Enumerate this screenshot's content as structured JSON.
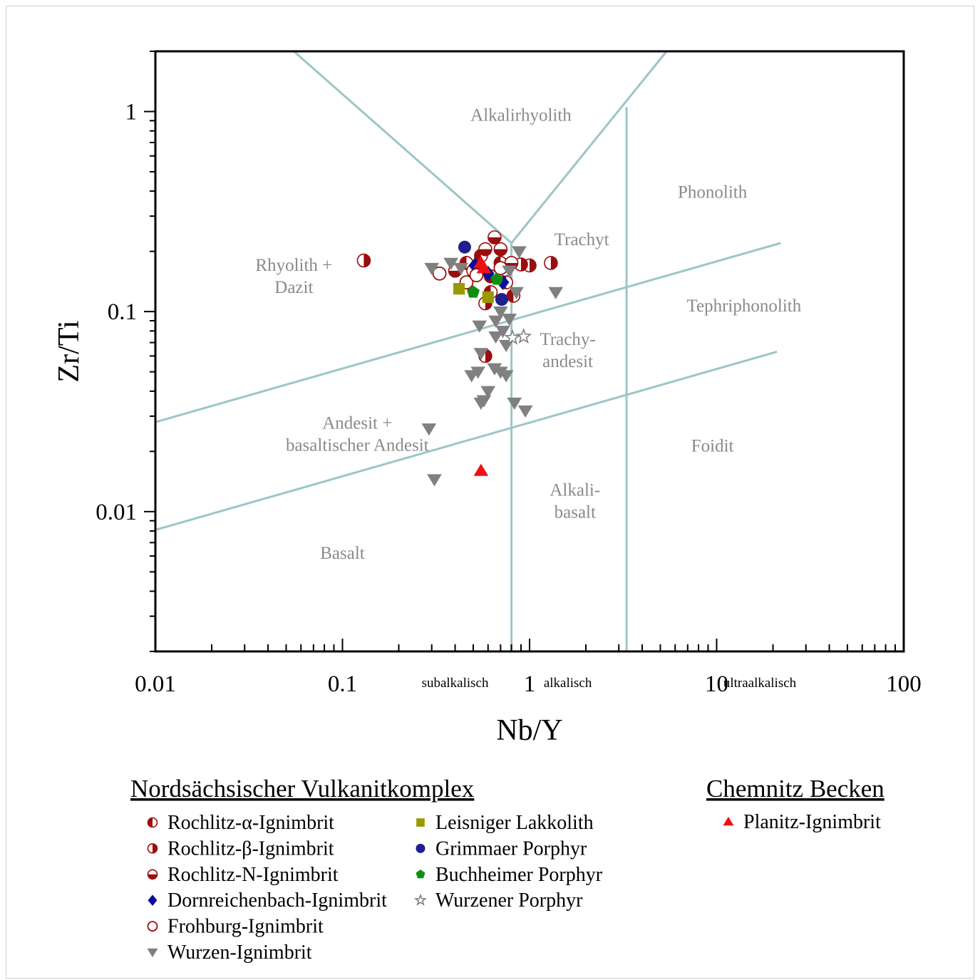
{
  "chart_data": {
    "type": "scatter",
    "xlabel": "Nb/Y",
    "ylabel": "Zr/Ti",
    "x_scale": "log",
    "y_scale": "log",
    "xlim": [
      0.01,
      100
    ],
    "ylim": [
      0.002,
      2
    ],
    "x_tick_labels": [
      {
        "value": 0.01,
        "label": "0.01"
      },
      {
        "value": 0.1,
        "label": "0.1"
      },
      {
        "value": 1,
        "label": "1"
      },
      {
        "value": 10,
        "label": "10"
      },
      {
        "value": 100,
        "label": "100"
      }
    ],
    "y_tick_labels": [
      {
        "value": 1,
        "label": "1"
      },
      {
        "value": 0.1,
        "label": "0.1"
      },
      {
        "value": 0.01,
        "label": "0.01"
      }
    ],
    "region_labels": [
      {
        "text": "subalkalisch",
        "x": 0.4
      },
      {
        "text": "alkalisch",
        "x": 1.6
      },
      {
        "text": "ultraalkalisch",
        "x": 17
      }
    ],
    "fields": [
      {
        "lines": [
          "Alkalirhyolith"
        ],
        "x": 0.9,
        "y": 0.9
      },
      {
        "lines": [
          "Phonolith"
        ],
        "x": 9.5,
        "y": 0.37
      },
      {
        "lines": [
          "Trachyt"
        ],
        "x": 1.9,
        "y": 0.215
      },
      {
        "lines": [
          "Rhyolith +",
          "Dazit"
        ],
        "x": 0.055,
        "y": 0.16
      },
      {
        "lines": [
          "Tephriphonolith"
        ],
        "x": 14,
        "y": 0.1
      },
      {
        "lines": [
          "Trachy-",
          "andesit"
        ],
        "x": 1.6,
        "y": 0.068
      },
      {
        "lines": [
          "Andesit +",
          "basaltischer Andesit"
        ],
        "x": 0.12,
        "y": 0.026
      },
      {
        "lines": [
          "Foidit"
        ],
        "x": 9.5,
        "y": 0.02
      },
      {
        "lines": [
          "Alkali-",
          "basalt"
        ],
        "x": 1.75,
        "y": 0.012
      },
      {
        "lines": [
          "Basalt"
        ],
        "x": 0.1,
        "y": 0.0058
      }
    ],
    "field_boundaries": [
      {
        "points": [
          [
            0.01,
            0.028
          ],
          [
            22,
            0.22
          ]
        ]
      },
      {
        "points": [
          [
            0.01,
            0.0081
          ],
          [
            21,
            0.063
          ]
        ]
      },
      {
        "points": [
          [
            0.8,
            0.002
          ],
          [
            0.8,
            0.22
          ]
        ]
      },
      {
        "points": [
          [
            3.3,
            0.002
          ],
          [
            3.3,
            1.05
          ]
        ]
      },
      {
        "points": [
          [
            0.8,
            0.22
          ],
          [
            0.055,
            2
          ]
        ]
      },
      {
        "points": [
          [
            0.8,
            0.22
          ],
          [
            5.4,
            2
          ]
        ]
      }
    ],
    "series": [
      {
        "name": "Rochlitz-α-Ignimbrit",
        "group": "Nordsächsischer Vulkanitkomplex",
        "marker": "circle-half-left",
        "color": "#9b0d0d",
        "points": [
          [
            0.46,
            0.175
          ],
          [
            0.55,
            0.19
          ],
          [
            0.7,
            0.175
          ],
          [
            0.62,
            0.125
          ],
          [
            0.82,
            0.12
          ],
          [
            0.75,
            0.14
          ]
        ]
      },
      {
        "name": "Rochlitz-β-Ignimbrit",
        "group": "Nordsächsischer Vulkanitkomplex",
        "marker": "circle-half-right",
        "color": "#9b0d0d",
        "points": [
          [
            0.13,
            0.18
          ],
          [
            1.3,
            0.175
          ],
          [
            0.58,
            0.06
          ],
          [
            0.58,
            0.11
          ],
          [
            1.0,
            0.17
          ],
          [
            0.9,
            0.172
          ],
          [
            0.5,
            0.16
          ]
        ]
      },
      {
        "name": "Rochlitz-N-Ignimbrit",
        "group": "Nordsächsischer Vulkanitkomplex",
        "marker": "circle-half-bottom",
        "color": "#9b0d0d",
        "points": [
          [
            0.65,
            0.235
          ],
          [
            0.58,
            0.205
          ],
          [
            0.7,
            0.205
          ],
          [
            0.8,
            0.175
          ],
          [
            0.4,
            0.16
          ],
          [
            0.62,
            0.15
          ]
        ]
      },
      {
        "name": "Dornreichenbach-Ignimbrit",
        "group": "Nordsächsischer Vulkanitkomplex",
        "marker": "diamond",
        "color": "#0b0b9e",
        "points": [
          [
            0.51,
            0.17
          ],
          [
            0.72,
            0.14
          ],
          [
            0.6,
            0.155
          ]
        ]
      },
      {
        "name": "Frohburg-Ignimbrit",
        "group": "Nordsächsischer Vulkanitkomplex",
        "marker": "circle-open",
        "color": "#9b0d0d",
        "points": [
          [
            0.33,
            0.155
          ],
          [
            0.46,
            0.14
          ],
          [
            0.52,
            0.152
          ],
          [
            0.7,
            0.165
          ]
        ]
      },
      {
        "name": "Wurzen-Ignimbrit",
        "group": "Nordsächsischer Vulkanitkomplex",
        "marker": "triangle-down",
        "color": "#808080",
        "points": [
          [
            0.3,
            0.165
          ],
          [
            0.38,
            0.175
          ],
          [
            0.43,
            0.165
          ],
          [
            0.88,
            0.2
          ],
          [
            0.78,
            0.16
          ],
          [
            1.38,
            0.125
          ],
          [
            0.85,
            0.125
          ],
          [
            0.7,
            0.1
          ],
          [
            0.78,
            0.092
          ],
          [
            0.66,
            0.09
          ],
          [
            0.54,
            0.085
          ],
          [
            0.72,
            0.08
          ],
          [
            0.66,
            0.075
          ],
          [
            0.75,
            0.068
          ],
          [
            0.55,
            0.062
          ],
          [
            0.65,
            0.052
          ],
          [
            0.7,
            0.05
          ],
          [
            0.75,
            0.048
          ],
          [
            0.49,
            0.048
          ],
          [
            0.53,
            0.05
          ],
          [
            0.6,
            0.04
          ],
          [
            0.57,
            0.036
          ],
          [
            0.55,
            0.035
          ],
          [
            0.83,
            0.035
          ],
          [
            0.95,
            0.032
          ],
          [
            0.29,
            0.026
          ],
          [
            0.31,
            0.0145
          ]
        ]
      },
      {
        "name": "Leisniger Lakkolith",
        "group": "Nordsächsischer Vulkanitkomplex",
        "marker": "square",
        "color": "#9a9a00",
        "points": [
          [
            0.42,
            0.13
          ],
          [
            0.6,
            0.118
          ]
        ]
      },
      {
        "name": "Grimmaer Porphyr",
        "group": "Nordsächsischer Vulkanitkomplex",
        "marker": "circle-filled",
        "color": "#1f1f8f",
        "points": [
          [
            0.45,
            0.21
          ],
          [
            0.71,
            0.115
          ]
        ]
      },
      {
        "name": "Buchheimer Porphyr",
        "group": "Nordsächsischer Vulkanitkomplex",
        "marker": "pentagon",
        "color": "#0f8f0f",
        "points": [
          [
            0.5,
            0.125
          ],
          [
            0.67,
            0.145
          ]
        ]
      },
      {
        "name": "Wurzener Porphyr",
        "group": "Nordsächsischer Vulkanitkomplex",
        "marker": "star",
        "color": "#808080",
        "points": [
          [
            0.93,
            0.075
          ],
          [
            0.81,
            0.074
          ]
        ]
      },
      {
        "name": "Planitz-Ignimbrit",
        "group": "Chemnitz Becken",
        "marker": "triangle-up",
        "color": "#ee1111",
        "points": [
          [
            0.55,
            0.175
          ],
          [
            0.57,
            0.165
          ],
          [
            0.55,
            0.016
          ]
        ]
      }
    ],
    "legend": {
      "groups": [
        {
          "title": "Nordsächsischer Vulkanitkomplex",
          "columns": [
            [
              "Rochlitz-α-Ignimbrit",
              "Rochlitz-β-Ignimbrit",
              "Rochlitz-N-Ignimbrit",
              "Dornreichenbach-Ignimbrit",
              "Frohburg-Ignimbrit",
              "Wurzen-Ignimbrit"
            ],
            [
              "Leisniger Lakkolith",
              "Grimmaer Porphyr",
              "Buchheimer Porphyr",
              "Wurzener Porphyr"
            ]
          ]
        },
        {
          "title": "Chemnitz Becken",
          "columns": [
            [
              "Planitz-Ignimbrit"
            ]
          ]
        }
      ]
    }
  }
}
